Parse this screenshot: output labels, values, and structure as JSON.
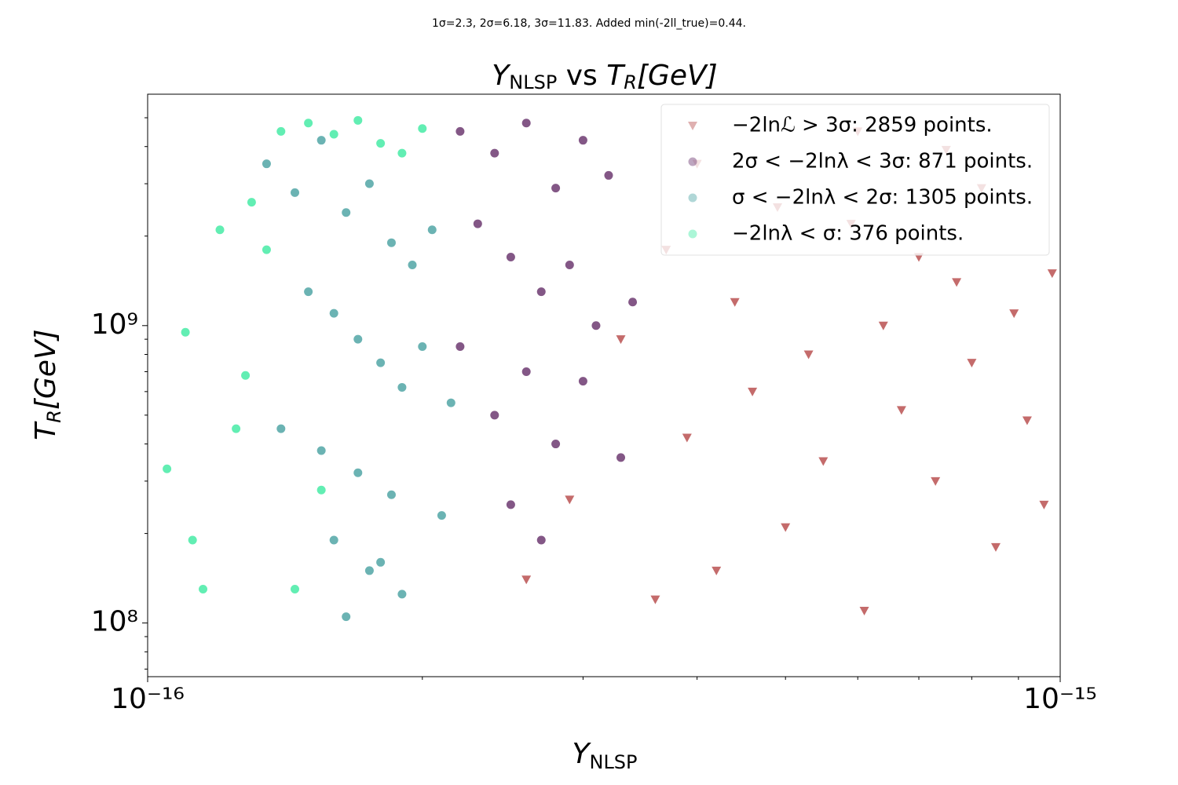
{
  "chart_data": {
    "type": "scatter",
    "subtitle": "1σ=2.3, 2σ=6.18, 3σ=11.83. Added min(-2ll_true)=0.44.",
    "title": [
      "Y",
      "NLSP",
      " vs ",
      "T",
      "R",
      "[GeV]"
    ],
    "x_label": [
      "Y",
      "NLSP"
    ],
    "y_label": [
      "T",
      "R",
      "[GeV]"
    ],
    "log_x": true,
    "log_y": true,
    "xlim": [
      1e-16,
      1e-15
    ],
    "ylim": [
      66000000.0,
      6000000000.0
    ],
    "xticks": [
      {
        "value": 1e-16,
        "label": "10⁻¹⁶"
      },
      {
        "value": 1e-15,
        "label": "10⁻¹⁵"
      }
    ],
    "yticks": [
      {
        "value": 100000000.0,
        "label": "10⁸"
      },
      {
        "value": 1000000000.0,
        "label": "10⁹"
      }
    ],
    "xminorticks": [
      2e-16,
      3e-16,
      4e-16,
      5e-16,
      6e-16,
      7e-16,
      8e-16,
      9e-16
    ],
    "yminorticks": [
      70000000.0,
      80000000.0,
      90000000.0,
      200000000.0,
      300000000.0,
      400000000.0,
      500000000.0,
      600000000.0,
      700000000.0,
      800000000.0,
      900000000.0,
      2000000000.0,
      3000000000.0,
      4000000000.0,
      5000000000.0
    ],
    "legend": "upper right",
    "series": [
      {
        "name": "−2lnℒ > 3σ: 2859 points.",
        "color": "#b03a3a",
        "marker": "v",
        "x": [
          3.6e-16,
          4.2e-16,
          5e-16,
          6.1e-16,
          7.3e-16,
          8.5e-16,
          9.6e-16,
          3.9e-16,
          4.6e-16,
          5.5e-16,
          6.7e-16,
          8e-16,
          9.2e-16,
          3.3e-16,
          4.4e-16,
          5.3e-16,
          6.4e-16,
          7.7e-16,
          8.9e-16,
          2.9e-16,
          3.7e-16,
          4.9e-16,
          5.9e-16,
          7e-16,
          8.2e-16,
          9.8e-16,
          2.6e-16,
          4e-16,
          6e-16,
          7.5e-16
        ],
        "values": [
          120000000.0,
          150000000.0,
          210000000.0,
          110000000.0,
          300000000.0,
          180000000.0,
          250000000.0,
          420000000.0,
          600000000.0,
          350000000.0,
          520000000.0,
          750000000.0,
          480000000.0,
          900000000.0,
          1200000000.0,
          800000000.0,
          1000000000.0,
          1400000000.0,
          1100000000.0,
          260000000.0,
          1800000000.0,
          2500000000.0,
          2200000000.0,
          1700000000.0,
          2900000000.0,
          1500000000.0,
          140000000.0,
          3500000000.0,
          4500000000.0,
          3900000000.0
        ]
      },
      {
        "name": "2σ < −2lnλ < 3σ: 871 points.",
        "color": "#5a1f5e",
        "marker": "o",
        "x": [
          2.2e-16,
          2.4e-16,
          2.6e-16,
          2.8e-16,
          3e-16,
          3.2e-16,
          2.3e-16,
          2.5e-16,
          2.7e-16,
          2.9e-16,
          3.1e-16,
          3.4e-16,
          2.2e-16,
          2.6e-16,
          3e-16,
          2.4e-16,
          2.8e-16,
          3.3e-16,
          2.5e-16,
          2.7e-16
        ],
        "values": [
          4500000000.0,
          3800000000.0,
          4800000000.0,
          2900000000.0,
          4200000000.0,
          3200000000.0,
          2200000000.0,
          1700000000.0,
          1300000000.0,
          1600000000.0,
          1000000000.0,
          1200000000.0,
          850000000.0,
          700000000.0,
          650000000.0,
          500000000.0,
          400000000.0,
          360000000.0,
          250000000.0,
          190000000.0
        ]
      },
      {
        "name": "σ < −2lnλ < 2σ: 1305 points.",
        "color": "#3a9a9a",
        "marker": "o",
        "x": [
          1.35e-16,
          1.45e-16,
          1.55e-16,
          1.65e-16,
          1.75e-16,
          1.85e-16,
          1.95e-16,
          2.05e-16,
          1.5e-16,
          1.6e-16,
          1.7e-16,
          1.8e-16,
          1.9e-16,
          2e-16,
          2.15e-16,
          1.4e-16,
          1.55e-16,
          1.7e-16,
          1.85e-16,
          2.1e-16,
          1.6e-16,
          1.75e-16,
          1.9e-16,
          1.65e-16,
          1.8e-16
        ],
        "values": [
          3500000000.0,
          2800000000.0,
          4200000000.0,
          2400000000.0,
          3000000000.0,
          1900000000.0,
          1600000000.0,
          2100000000.0,
          1300000000.0,
          1100000000.0,
          900000000.0,
          750000000.0,
          620000000.0,
          850000000.0,
          550000000.0,
          450000000.0,
          380000000.0,
          320000000.0,
          270000000.0,
          230000000.0,
          190000000.0,
          150000000.0,
          125000000.0,
          105000000.0,
          160000000.0
        ]
      },
      {
        "name": "−2lnλ < σ: 376 points.",
        "color": "#2ee89a",
        "marker": "o",
        "x": [
          1.05e-16,
          1.1e-16,
          1.15e-16,
          1.2e-16,
          1.25e-16,
          1.3e-16,
          1.4e-16,
          1.5e-16,
          1.6e-16,
          1.7e-16,
          1.8e-16,
          1.9e-16,
          2e-16,
          1.45e-16,
          1.55e-16,
          1.35e-16,
          1.12e-16,
          1.28e-16
        ],
        "values": [
          330000000.0,
          950000000.0,
          130000000.0,
          2100000000.0,
          450000000.0,
          2600000000.0,
          4500000000.0,
          4800000000.0,
          4400000000.0,
          4900000000.0,
          4100000000.0,
          3800000000.0,
          4600000000.0,
          130000000.0,
          280000000.0,
          1800000000.0,
          190000000.0,
          680000000.0
        ]
      }
    ]
  }
}
